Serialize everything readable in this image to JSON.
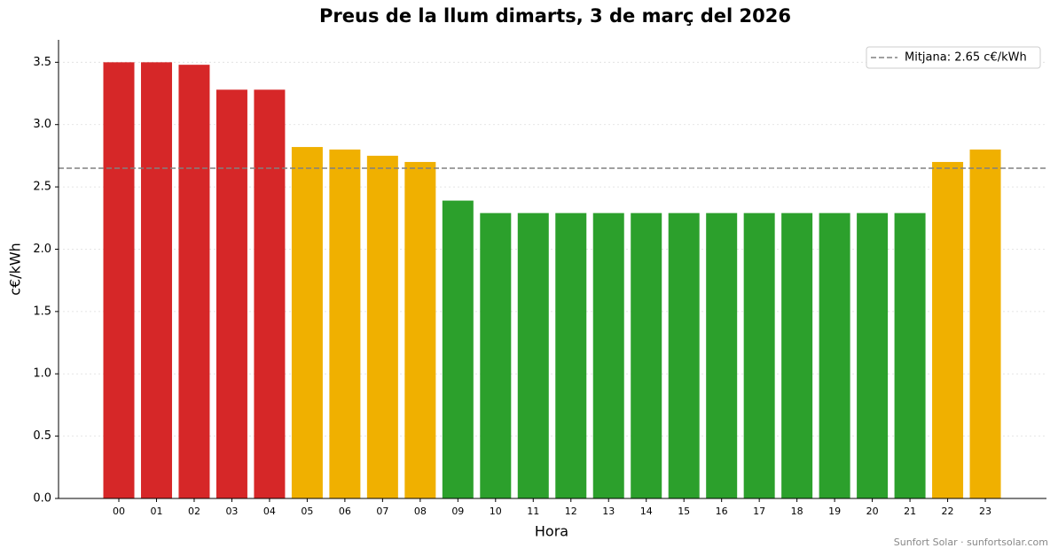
{
  "chart_data": {
    "type": "bar",
    "title": "Preus de la llum dimarts, 3 de març del 2026",
    "x_label": "Hora",
    "y_label": "c€/kWh",
    "categories": [
      "00",
      "01",
      "02",
      "03",
      "04",
      "05",
      "06",
      "07",
      "08",
      "09",
      "10",
      "11",
      "12",
      "13",
      "14",
      "15",
      "16",
      "17",
      "18",
      "19",
      "20",
      "21",
      "22",
      "23"
    ],
    "values": [
      3.5,
      3.5,
      3.48,
      3.28,
      3.28,
      2.82,
      2.8,
      2.75,
      2.7,
      2.39,
      2.29,
      2.29,
      2.29,
      2.29,
      2.29,
      2.29,
      2.29,
      2.29,
      2.29,
      2.29,
      2.29,
      2.29,
      2.7,
      2.8
    ],
    "colors": [
      "#d62728",
      "#d62728",
      "#d62728",
      "#d62728",
      "#d62728",
      "#f0b000",
      "#f0b000",
      "#f0b000",
      "#f0b000",
      "#2ca02c",
      "#2ca02c",
      "#2ca02c",
      "#2ca02c",
      "#2ca02c",
      "#2ca02c",
      "#2ca02c",
      "#2ca02c",
      "#2ca02c",
      "#2ca02c",
      "#2ca02c",
      "#2ca02c",
      "#2ca02c",
      "#f0b000",
      "#f0b000"
    ],
    "mean": 2.65,
    "mean_label": "Mitjana: 2.65 c€/kWh",
    "mean_color": "#808080",
    "ylim": [
      0,
      3.68
    ],
    "yticks": [
      {
        "value": 0,
        "label": "0.0"
      },
      0.5,
      {
        "value": 1,
        "label": "1.0"
      },
      1.5,
      {
        "value": 2,
        "label": "2.0"
      },
      2.5,
      {
        "value": 3,
        "label": "3.0"
      },
      3.5
    ],
    "grid": true,
    "legend_position": "upper right",
    "footer": "Sunfort Solar · sunfortsolar.com"
  }
}
